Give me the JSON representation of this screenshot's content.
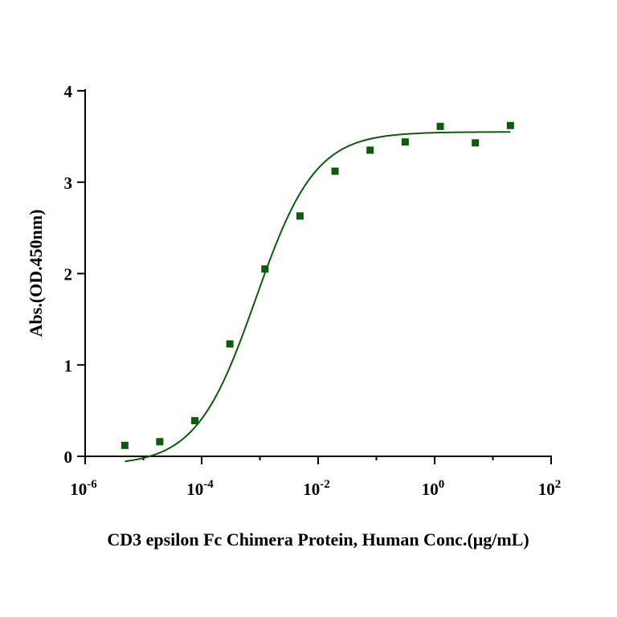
{
  "chart_data": {
    "type": "scatter",
    "title": "",
    "xlabel": "CD3 epsilon Fc Chimera Protein, Human Conc.(μg/mL)",
    "ylabel": "Abs.(OD.450nm)",
    "x_scale": "log10",
    "xlim": [
      1e-06,
      100
    ],
    "ylim": [
      0,
      4
    ],
    "x_ticks": [
      {
        "value": 1e-06,
        "base": "10",
        "exp": "-6"
      },
      {
        "value": 0.0001,
        "base": "10",
        "exp": "-4"
      },
      {
        "value": 0.01,
        "base": "10",
        "exp": "-2"
      },
      {
        "value": 1,
        "base": "10",
        "exp": "0"
      },
      {
        "value": 100,
        "base": "10",
        "exp": "2"
      }
    ],
    "y_ticks": [
      {
        "value": 0,
        "label": "0"
      },
      {
        "value": 1,
        "label": "1"
      },
      {
        "value": 2,
        "label": "2"
      },
      {
        "value": 3,
        "label": "3"
      },
      {
        "value": 4,
        "label": "4"
      }
    ],
    "grid": false,
    "legend": "none",
    "series": [
      {
        "color": "#0a5c0a",
        "marker": "square",
        "x": [
          4.8e-06,
          1.91e-05,
          7.63e-05,
          0.000305,
          0.00122,
          0.00488,
          0.0195,
          0.078,
          0.3125,
          1.25,
          5,
          20
        ],
        "y": [
          0.12,
          0.16,
          0.39,
          1.23,
          2.05,
          2.63,
          3.12,
          3.35,
          3.44,
          3.61,
          3.43,
          3.62
        ],
        "fit": {
          "model": "4PL",
          "bottom": -0.1,
          "top": 3.55,
          "ec50": 0.00085,
          "hill": 0.85
        }
      }
    ]
  }
}
